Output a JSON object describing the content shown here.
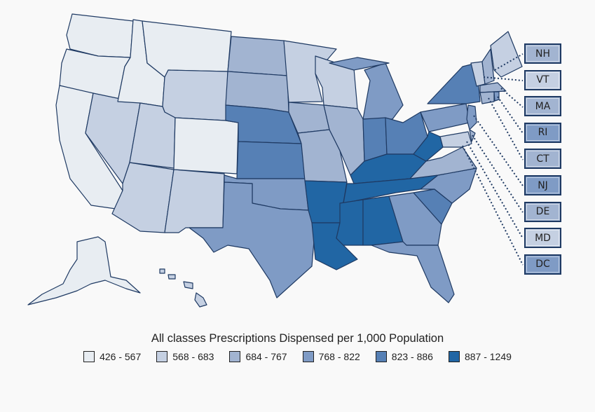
{
  "legend": {
    "title": "All classes Prescriptions Dispensed per 1,000 Population",
    "bins": [
      {
        "label": "426 - 567",
        "color": "#e8edf2"
      },
      {
        "label": "568 - 683",
        "color": "#c5d0e2"
      },
      {
        "label": "684 - 767",
        "color": "#a2b4d1"
      },
      {
        "label": "768 - 822",
        "color": "#7f9bc5"
      },
      {
        "label": "823 - 886",
        "color": "#5680b5"
      },
      {
        "label": "887 - 1249",
        "color": "#2166a4"
      }
    ]
  },
  "states": {
    "WA": 0,
    "OR": 0,
    "CA": 0,
    "ID": 0,
    "MT": 0,
    "CO": 0,
    "AK": 0,
    "WY": 1,
    "NV": 1,
    "UT": 1,
    "AZ": 1,
    "NM": 1,
    "MN": 1,
    "WI": 1,
    "ME": 1,
    "HI": 1,
    "VT": 1,
    "MD": 1,
    "ND": 2,
    "SD": 2,
    "IA": 2,
    "MO": 2,
    "IL": 2,
    "VA": 2,
    "NH": 2,
    "MA": 2,
    "CT": 2,
    "DE": 2,
    "OK": 3,
    "TX": 3,
    "MI": 3,
    "GA": 3,
    "FL": 3,
    "NC": 3,
    "PA": 3,
    "RI": 3,
    "NJ": 3,
    "DC": 3,
    "NE": 4,
    "KS": 4,
    "IN": 4,
    "OH": 4,
    "SC": 4,
    "NY": 4,
    "AR": 5,
    "LA": 5,
    "KY": 5,
    "TN": 5,
    "MS": 5,
    "AL": 5,
    "WV": 5
  },
  "callouts": [
    "NH",
    "VT",
    "MA",
    "RI",
    "CT",
    "NJ",
    "DE",
    "MD",
    "DC"
  ]
}
